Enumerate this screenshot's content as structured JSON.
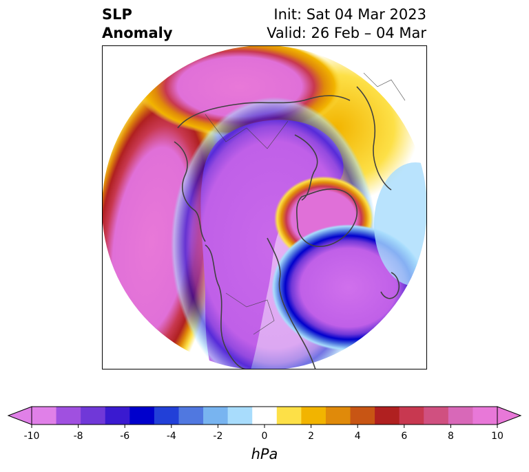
{
  "header": {
    "left_line1": "SLP",
    "left_line2": "Anomaly",
    "right_line1": "Init: Sat 04 Mar 2023",
    "right_line2": "Valid: 26 Feb – 04 Mar"
  },
  "colorbar": {
    "unit": "hPa",
    "ticks": [
      "-10",
      "-8",
      "-6",
      "-4",
      "-2",
      "0",
      "2",
      "4",
      "6",
      "8",
      "10"
    ],
    "colors": [
      "#e080e8",
      "#a050e0",
      "#7038d8",
      "#3a1ad0",
      "#0000cc",
      "#2240d8",
      "#5078e0",
      "#78b4f0",
      "#a8dcfc",
      "#ffffff",
      "#fde047",
      "#f2b400",
      "#e08a0a",
      "#c85514",
      "#b02020",
      "#c83850",
      "#d05080",
      "#d868b8",
      "#e878d8"
    ],
    "extend": "both"
  },
  "map": {
    "projection": "polar-stereographic",
    "region": "Northern Hemisphere",
    "colors": {
      "land": "#404040",
      "frame": "#000000"
    }
  }
}
